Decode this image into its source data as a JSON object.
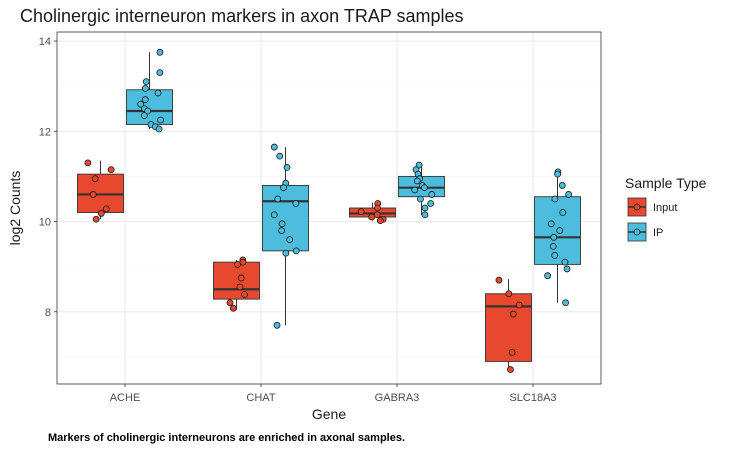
{
  "chart_data": {
    "type": "boxplot",
    "title": "Cholinergic interneuron markers in axon TRAP samples",
    "xlabel": "Gene",
    "ylabel": "log2 Counts",
    "caption": "Markers of cholinergic interneurons are enriched in axonal samples.",
    "ylim": [
      6.4,
      14.2
    ],
    "yticks": [
      8,
      10,
      12,
      14
    ],
    "categories": [
      "ACHE",
      "CHAT",
      "GABRA3",
      "SLC18A3"
    ],
    "legend": {
      "title": "Sample Type",
      "position": "right"
    },
    "grid": true,
    "series": [
      {
        "name": "Input",
        "color": "#e8492e",
        "boxes": [
          {
            "category": "ACHE",
            "whisker_low": 10.05,
            "q1": 10.2,
            "median": 10.6,
            "q3": 11.05,
            "whisker_high": 11.35,
            "points": [
              11.3,
              11.15,
              10.95,
              10.6,
              10.28,
              10.18,
              10.05
            ]
          },
          {
            "category": "CHAT",
            "whisker_low": 8.05,
            "q1": 8.28,
            "median": 8.5,
            "q3": 9.1,
            "whisker_high": 9.15,
            "points": [
              9.15,
              9.1,
              9.05,
              8.75,
              8.55,
              8.38,
              8.2,
              8.08
            ]
          },
          {
            "category": "GABRA3",
            "whisker_low": 10.02,
            "q1": 10.1,
            "median": 10.18,
            "q3": 10.3,
            "whisker_high": 10.42,
            "points": [
              10.4,
              10.3,
              10.22,
              10.15,
              10.1,
              10.05,
              10.02
            ]
          },
          {
            "category": "SLC18A3",
            "whisker_low": 6.7,
            "q1": 6.9,
            "median": 8.12,
            "q3": 8.4,
            "whisker_high": 8.72,
            "points": [
              8.7,
              8.4,
              8.15,
              7.95,
              7.1,
              6.72
            ]
          }
        ]
      },
      {
        "name": "IP",
        "color": "#4cbddd",
        "boxes": [
          {
            "category": "ACHE",
            "whisker_low": 12.05,
            "q1": 12.15,
            "median": 12.45,
            "q3": 12.92,
            "whisker_high": 13.75,
            "points": [
              13.75,
              13.3,
              13.1,
              12.95,
              12.85,
              12.7,
              12.6,
              12.5,
              12.45,
              12.35,
              12.25,
              12.15,
              12.1,
              12.05
            ]
          },
          {
            "category": "CHAT",
            "whisker_low": 7.7,
            "q1": 9.35,
            "median": 10.45,
            "q3": 10.8,
            "whisker_high": 11.65,
            "points": [
              11.65,
              11.45,
              11.2,
              10.85,
              10.75,
              10.5,
              10.4,
              10.15,
              9.95,
              9.8,
              9.6,
              9.35,
              9.3,
              7.7
            ]
          },
          {
            "category": "GABRA3",
            "whisker_low": 10.15,
            "q1": 10.55,
            "median": 10.75,
            "q3": 11.0,
            "whisker_high": 11.25,
            "points": [
              11.25,
              11.15,
              11.05,
              10.95,
              10.9,
              10.8,
              10.75,
              10.7,
              10.6,
              10.5,
              10.4,
              10.3,
              10.15
            ]
          },
          {
            "category": "SLC18A3",
            "whisker_low": 8.2,
            "q1": 9.05,
            "median": 9.65,
            "q3": 10.55,
            "whisker_high": 11.1,
            "points": [
              11.1,
              11.05,
              10.8,
              10.6,
              10.5,
              10.2,
              9.95,
              9.8,
              9.65,
              9.45,
              9.25,
              9.1,
              8.95,
              8.8,
              8.2
            ]
          }
        ]
      }
    ]
  }
}
